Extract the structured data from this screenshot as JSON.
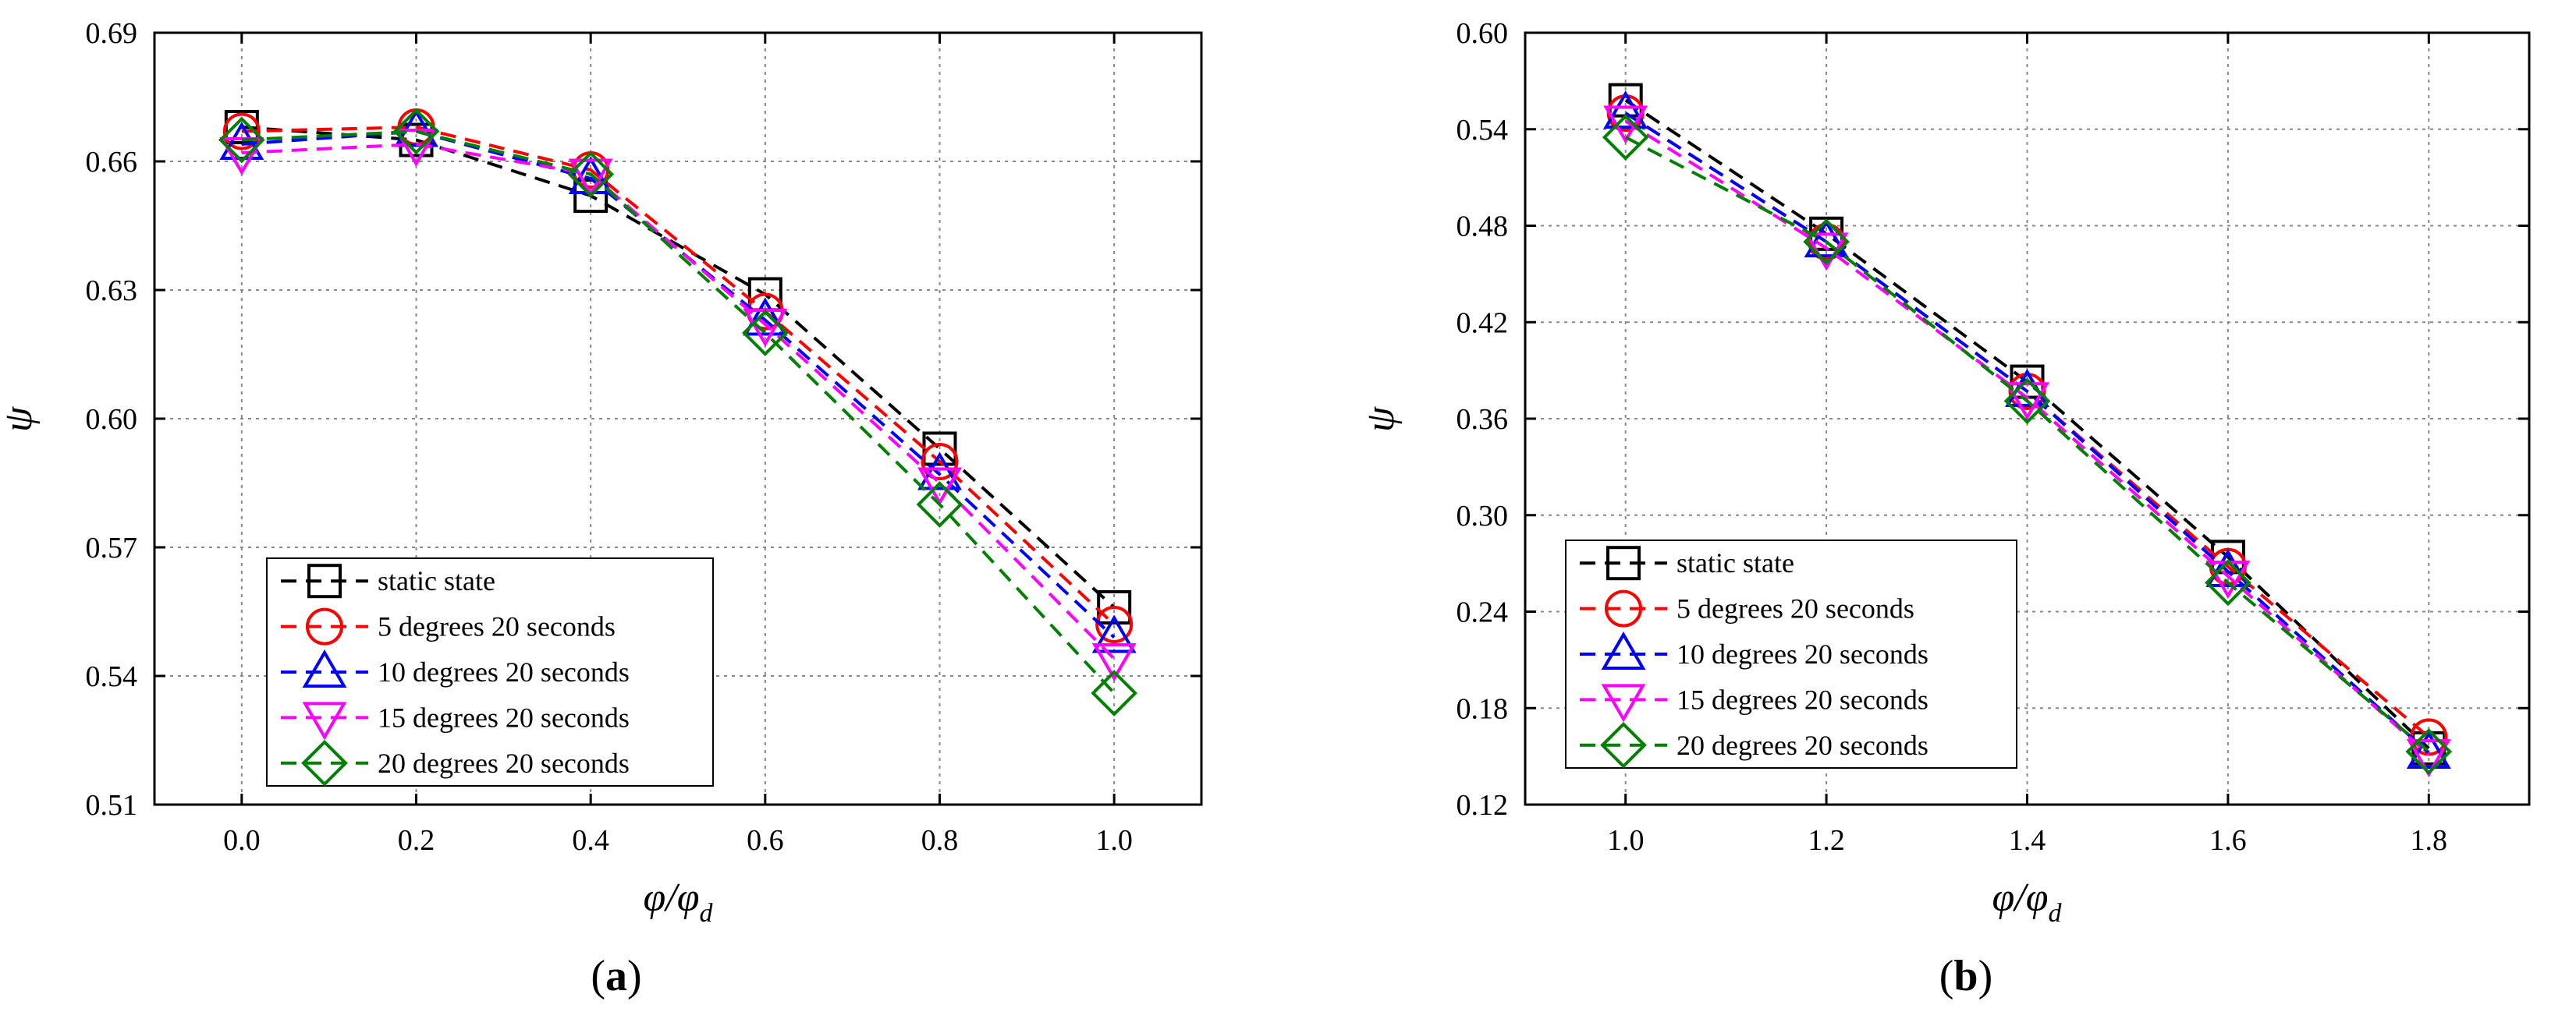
{
  "chart_data": [
    {
      "type": "line",
      "panel_label": "a",
      "xlabel": "φ/φ",
      "xlabel_sub": "d",
      "ylabel": "ψ",
      "xlim": [
        -0.1,
        1.1
      ],
      "ylim": [
        0.51,
        0.69
      ],
      "x_ticks": [
        "0.0",
        "0.2",
        "0.4",
        "0.6",
        "0.8",
        "1.0"
      ],
      "y_ticks": [
        "0.51",
        "0.54",
        "0.57",
        "0.60",
        "0.63",
        "0.66",
        "0.69"
      ],
      "grid": true,
      "legend_position": "bottom-left",
      "x": [
        0.0,
        0.2,
        0.4,
        0.6,
        0.8,
        1.0
      ],
      "series": [
        {
          "name": "static state",
          "marker": "square",
          "color": "#000000",
          "values": [
            0.668,
            0.665,
            0.652,
            0.629,
            0.593,
            0.556
          ]
        },
        {
          "name": "5 degrees 20 seconds",
          "marker": "circle",
          "color": "#ff0000",
          "values": [
            0.667,
            0.668,
            0.658,
            0.625,
            0.59,
            0.552
          ]
        },
        {
          "name": "10 degrees 20 seconds",
          "marker": "triangle-up",
          "color": "#0000ff",
          "values": [
            0.664,
            0.667,
            0.656,
            0.623,
            0.587,
            0.549
          ]
        },
        {
          "name": "15 degrees 20 seconds",
          "marker": "triangle-down",
          "color": "#ff00ff",
          "values": [
            0.662,
            0.664,
            0.657,
            0.622,
            0.585,
            0.544
          ]
        },
        {
          "name": "20 degrees 20 seconds",
          "marker": "diamond",
          "color": "#008000",
          "values": [
            0.665,
            0.667,
            0.657,
            0.62,
            0.58,
            0.536
          ]
        }
      ]
    },
    {
      "type": "line",
      "panel_label": "b",
      "xlabel": "φ/φ",
      "xlabel_sub": "d",
      "ylabel": "ψ",
      "xlim": [
        0.9,
        1.9
      ],
      "ylim": [
        0.12,
        0.6
      ],
      "x_ticks": [
        "1.0",
        "1.2",
        "1.4",
        "1.6",
        "1.8"
      ],
      "y_ticks": [
        "0.12",
        "0.18",
        "0.24",
        "0.30",
        "0.36",
        "0.42",
        "0.48",
        "0.54",
        "0.60"
      ],
      "grid": true,
      "legend_position": "bottom-left",
      "x": [
        1.0,
        1.2,
        1.4,
        1.6,
        1.8
      ],
      "series": [
        {
          "name": "static state",
          "marker": "square",
          "color": "#000000",
          "values": [
            0.558,
            0.475,
            0.383,
            0.274,
            0.155
          ]
        },
        {
          "name": "5 degrees 20 seconds",
          "marker": "circle",
          "color": "#ff0000",
          "values": [
            0.55,
            0.47,
            0.377,
            0.268,
            0.162
          ]
        },
        {
          "name": "10 degrees 20 seconds",
          "marker": "triangle-up",
          "color": "#0000ff",
          "values": [
            0.55,
            0.47,
            0.377,
            0.265,
            0.152
          ]
        },
        {
          "name": "15 degrees 20 seconds",
          "marker": "triangle-down",
          "color": "#ff00ff",
          "values": [
            0.545,
            0.466,
            0.373,
            0.262,
            0.151
          ]
        },
        {
          "name": "20 degrees 20 seconds",
          "marker": "diamond",
          "color": "#008000",
          "values": [
            0.535,
            0.47,
            0.371,
            0.258,
            0.153
          ]
        }
      ]
    }
  ]
}
